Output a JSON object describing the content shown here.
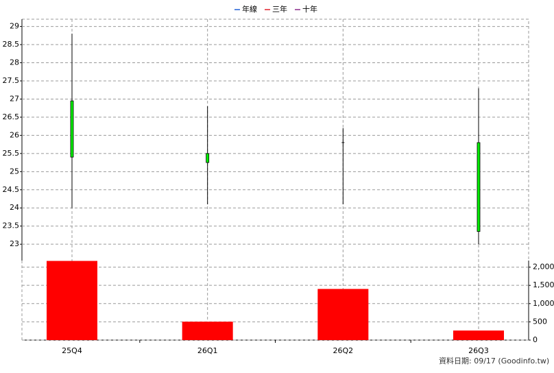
{
  "chart_data": {
    "type": "candlestick",
    "legend": [
      {
        "name": "年線",
        "color": "#1f5fd6"
      },
      {
        "name": "三年",
        "color": "#e0202a"
      },
      {
        "name": "十年",
        "color": "#8a2a8a"
      }
    ],
    "categories": [
      "25Q4",
      "26Q1",
      "26Q2",
      "26Q3"
    ],
    "open": [
      26.95,
      25.5,
      25.8,
      25.8
    ],
    "high": [
      28.8,
      26.8,
      26.2,
      27.3
    ],
    "low": [
      24.0,
      24.1,
      24.1,
      23.0
    ],
    "close": [
      25.4,
      25.25,
      25.8,
      23.35
    ],
    "candle_color": "#00ee00",
    "ylim": [
      22.55,
      29.2
    ],
    "yticks": [
      23,
      23.5,
      24,
      24.5,
      25,
      25.5,
      26,
      26.5,
      27,
      27.5,
      28,
      28.5,
      29
    ],
    "volume": {
      "values": [
        2170,
        505,
        1402,
        262
      ],
      "color": "#ff0000",
      "ylim": [
        0,
        2180
      ],
      "yticks": [
        0,
        500,
        {
          "value": 1000,
          "label": "1,000"
        },
        {
          "value": 1500,
          "label": "1,500"
        },
        {
          "value": 2000,
          "label": "2,000"
        }
      ]
    },
    "grid": true,
    "source": "資料日期: 09/17  (Goodinfo.tw)"
  }
}
